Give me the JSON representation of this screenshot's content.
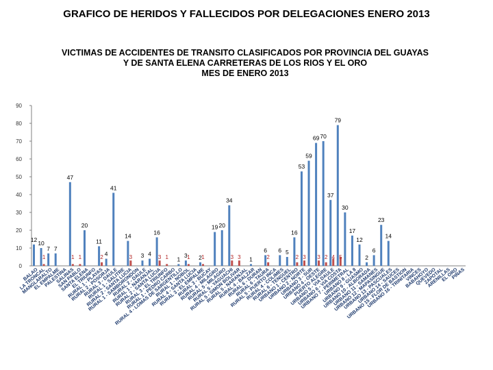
{
  "page_title": "GRAFICO DE HERIDOS Y FALLECIDOS POR DELEGACIONES  ENERO 2013",
  "colors": {
    "heridos": "#4f81bd",
    "fallecidos": "#c0504d",
    "axis": "#808080",
    "background": "#ffffff"
  },
  "chart_data": {
    "type": "bar",
    "title": "VICTIMAS DE ACCIDENTES  DE TRANSITO CLASIFICADOS POR  PROVINCIA DEL GUAYAS\nY DE SANTA ELENA CARRETERAS DE LOS RIOS Y EL ORO\nMES DE ENERO 2013",
    "xlabel": "",
    "ylabel": "",
    "ylim": [
      0,
      90
    ],
    "yticks": [
      0,
      10,
      20,
      30,
      40,
      50,
      60,
      70,
      80,
      90
    ],
    "grid": false,
    "legend": "none",
    "categories": [
      "BALAO",
      "LA TRONCAL",
      "MANGLARALTO",
      "EL EMPALME",
      "PALESTINA",
      "SALINAS",
      "SAN PABLO",
      "SANTA ELENA",
      "EL TRIUNFO",
      "RURAL 1 - PLAYAS",
      "RURAL 2 - POSORJA",
      "RURAL 3 - DAULE",
      "RURAL 1 - SALITRE",
      "RURAL 2 - SANTA LUCIA",
      "RURAL 1 - SAMBORONDON",
      "RURAL 2 - DAULE",
      "RURAL 1 - NARANJAL",
      "RURAL 2 - SANTA LUCIA",
      "RURAL 3 - EL TRIUNFO",
      "RURAL 1 - PEDRO CARBO",
      "RURAL 4 - LOMAS DE SARGENTILLO",
      "RURAL 1 - NOBOL",
      "RURAL 4 - SANTA LUCIA",
      "RURAL 3 - EL EMPALME",
      "RURAL 3 - BUCAY",
      "RURAL 4 - MILAGRO",
      "RURAL 5 - MILAGRO",
      "RURAL 5 - YAGUACHI",
      "RURAL 5 - SIMON BOLIVAR",
      "RURAL 5 - NARANJAL",
      "RURAL 4 - BALZAR",
      "RURAL 6 - DURAN",
      "RURAL 6 - TAURA",
      "RURAL 5 - PUERTO INCA",
      "RURAL 4 - COLIMES",
      "RURAL 6 - TENGUEL",
      "URBANO 1 - CENTRO",
      "URBANO 2 - NORTE",
      "URBANO 3 - SUR",
      "URBANO 4 - OESTE",
      "PUERTO ALEGRE",
      "URBANO 5 - VIA DAULE",
      "URBANO 6 - VIA COSTA",
      "URBANO 7 - PERIMETRAL",
      "URBANO 8 - LA 8",
      "URBANO 9 - GUASMO",
      "URBANO 10 - ALBORADA",
      "URBANO 11 - SAMANES",
      "URBANO 12 - MAPASINGUE",
      "URBANO 13 - PASCUALES",
      "URBANO 14 - SAUCES",
      "URBANO 15 - FLOR DE BASTION",
      "URBANO 16 - TRINITARIA",
      "VINCES",
      "BABAHOYO",
      "QUEVEDO",
      "ZAPOTAL",
      "ARENILLAS",
      "EL ORO",
      "PIÑAS"
    ],
    "series": [
      {
        "values": [
          12,
          10,
          7,
          7,
          0,
          47,
          0,
          20,
          0,
          11,
          4,
          41,
          0,
          14,
          0,
          3,
          4,
          16,
          0,
          0,
          1,
          3,
          0,
          2,
          0,
          19,
          20,
          34,
          0,
          0,
          1,
          0,
          6,
          0,
          6,
          5,
          16,
          53,
          59,
          69,
          70,
          37,
          79,
          30,
          17,
          12,
          2,
          6,
          23,
          14,
          0,
          0,
          0,
          0,
          0,
          0,
          0,
          0,
          0,
          0
        ]
      },
      {
        "values": [
          0,
          1,
          0,
          0,
          0,
          1,
          1,
          0,
          0,
          2,
          0,
          0,
          0,
          3,
          0,
          0,
          0,
          3,
          1,
          0,
          0,
          1,
          0,
          1,
          0,
          0,
          0,
          3,
          3,
          0,
          0,
          0,
          2,
          0,
          0,
          0,
          2,
          3,
          0,
          3,
          2,
          4,
          5,
          0,
          0,
          0,
          0,
          0,
          0,
          0,
          0,
          0,
          0,
          0,
          0,
          0,
          0,
          0,
          0,
          0
        ]
      }
    ]
  }
}
